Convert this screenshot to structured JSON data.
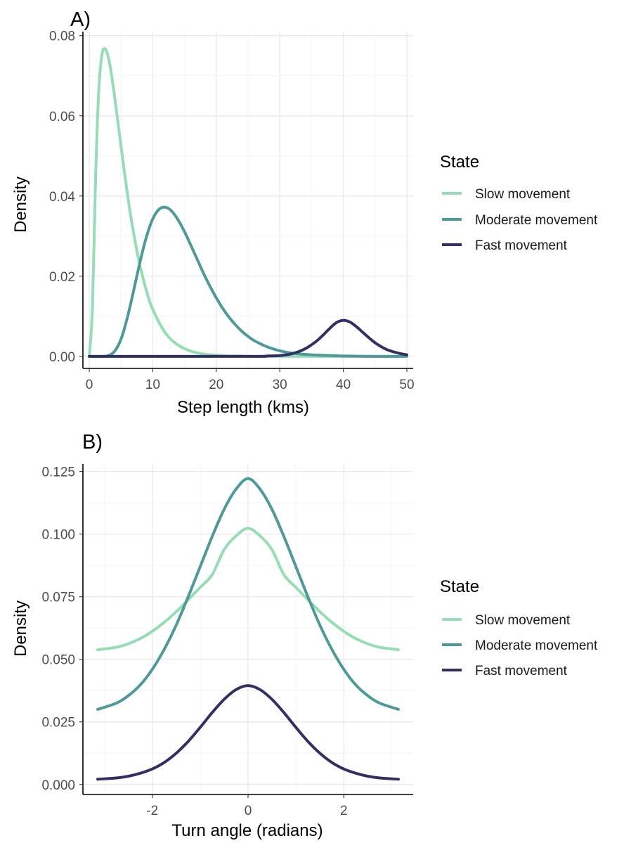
{
  "chart_data": [
    {
      "type": "line",
      "panel_tag": "A)",
      "xlabel": "Step length (kms)",
      "ylabel": "Density",
      "xlim": [
        -1,
        51
      ],
      "ylim": [
        -0.003,
        0.081
      ],
      "xticks": [
        0,
        10,
        20,
        30,
        40,
        50
      ],
      "xtick_labels": [
        "0",
        "10",
        "20",
        "30",
        "40",
        "50"
      ],
      "yticks": [
        0,
        0.02,
        0.04,
        0.06,
        0.08
      ],
      "ytick_labels": [
        "0.00",
        "0.02",
        "0.04",
        "0.06",
        "0.08"
      ],
      "grid": true,
      "legend": {
        "title": "State",
        "placement": "right",
        "entries": [
          "Slow movement",
          "Moderate movement",
          "Fast movement"
        ]
      },
      "series": [
        {
          "name": "Slow movement",
          "color": "#95DEB3",
          "x": [
            0,
            0.5,
            1,
            1.5,
            2,
            2.5,
            3,
            3.5,
            4,
            4.5,
            5,
            6,
            7,
            8,
            9,
            10,
            12,
            14,
            16,
            18,
            20,
            22,
            24,
            26,
            28,
            30,
            35,
            40,
            45,
            50
          ],
          "y": [
            0,
            0.0122,
            0.0448,
            0.0664,
            0.0753,
            0.0767,
            0.0746,
            0.0703,
            0.0647,
            0.0586,
            0.0524,
            0.0406,
            0.0306,
            0.0226,
            0.0164,
            0.0117,
            0.0058,
            0.0028,
            0.0013,
            0.0006,
            0.0003,
            0.0001,
            0.0001,
            0,
            0,
            0,
            0,
            0,
            0,
            0
          ]
        },
        {
          "name": "Moderate movement",
          "color": "#4E9A99",
          "x": [
            0,
            2,
            3,
            4,
            5,
            6,
            7,
            8,
            9,
            10,
            11,
            12,
            13,
            14,
            15,
            16,
            17,
            18,
            19,
            20,
            21,
            22,
            23,
            24,
            25,
            26,
            28,
            30,
            32,
            34,
            36,
            40,
            45,
            50
          ],
          "y": [
            0,
            0,
            0.0002,
            0.0013,
            0.0043,
            0.0097,
            0.0165,
            0.0236,
            0.0298,
            0.0343,
            0.0367,
            0.0372,
            0.0362,
            0.034,
            0.0311,
            0.0277,
            0.0242,
            0.0207,
            0.0175,
            0.0146,
            0.012,
            0.0098,
            0.0079,
            0.0063,
            0.005,
            0.0039,
            0.0024,
            0.0014,
            0.0008,
            0.0005,
            0.0003,
            0.0001,
            0,
            0
          ]
        },
        {
          "name": "Fast movement",
          "color": "#312F63",
          "x": [
            0,
            25,
            28,
            30,
            31,
            32,
            33,
            34,
            35,
            36,
            37,
            38,
            39,
            40,
            41,
            42,
            43,
            44,
            45,
            46,
            47,
            48,
            49,
            50
          ],
          "y": [
            0,
            0,
            0.0001,
            0.0002,
            0.0004,
            0.0007,
            0.0012,
            0.0019,
            0.0029,
            0.0041,
            0.0056,
            0.0072,
            0.0085,
            0.009,
            0.0086,
            0.0075,
            0.0061,
            0.0047,
            0.0034,
            0.0024,
            0.0016,
            0.0011,
            0.0007,
            0.0004
          ]
        }
      ]
    },
    {
      "type": "line",
      "panel_tag": "B)",
      "xlabel": "Turn angle (radians)",
      "ylabel": "Density",
      "xlim": [
        -3.45,
        3.45
      ],
      "ylim": [
        -0.004,
        0.128
      ],
      "xticks": [
        -2,
        0,
        2
      ],
      "xtick_labels": [
        "-2",
        "0",
        "2"
      ],
      "yticks": [
        0,
        0.025,
        0.05,
        0.075,
        0.1,
        0.125
      ],
      "ytick_labels": [
        "0.000",
        "0.025",
        "0.050",
        "0.075",
        "0.100",
        "0.125"
      ],
      "grid": true,
      "legend": {
        "title": "State",
        "placement": "right",
        "entries": [
          "Slow movement",
          "Moderate movement",
          "Fast movement"
        ]
      },
      "series": [
        {
          "name": "Slow movement",
          "color": "#95DEB3",
          "x": [
            -3.1416,
            -2.75,
            -2.5,
            -2.25,
            -2,
            -1.75,
            -1.5,
            -1.25,
            -1,
            -0.75,
            -0.5,
            -0.25,
            0,
            0.25,
            0.5,
            0.75,
            1,
            1.25,
            1.5,
            1.75,
            2,
            2.25,
            2.5,
            2.75,
            3.1416
          ],
          "y": [
            0.0538,
            0.0548,
            0.0562,
            0.0583,
            0.0612,
            0.0648,
            0.069,
            0.0738,
            0.0787,
            0.0838,
            0.0938,
            0.0993,
            0.1023,
            0.0993,
            0.0938,
            0.0838,
            0.0787,
            0.0738,
            0.069,
            0.0648,
            0.0612,
            0.0583,
            0.0562,
            0.0548,
            0.0538
          ]
        },
        {
          "name": "Moderate movement",
          "color": "#4E9A99",
          "x": [
            -3.1416,
            -2.75,
            -2.5,
            -2.25,
            -2,
            -1.75,
            -1.5,
            -1.25,
            -1,
            -0.75,
            -0.5,
            -0.25,
            0,
            0.25,
            0.5,
            0.75,
            1,
            1.25,
            1.5,
            1.75,
            2,
            2.25,
            2.5,
            2.75,
            3.1416
          ],
          "y": [
            0.03,
            0.0325,
            0.0355,
            0.0398,
            0.046,
            0.054,
            0.0637,
            0.075,
            0.087,
            0.099,
            0.1099,
            0.118,
            0.1222,
            0.118,
            0.1099,
            0.099,
            0.087,
            0.075,
            0.0637,
            0.054,
            0.046,
            0.0398,
            0.0355,
            0.0325,
            0.03
          ]
        },
        {
          "name": "Fast movement",
          "color": "#312F63",
          "x": [
            -3.1416,
            -2.75,
            -2.5,
            -2.25,
            -2,
            -1.75,
            -1.5,
            -1.25,
            -1,
            -0.75,
            -0.5,
            -0.25,
            0,
            0.25,
            0.5,
            0.75,
            1,
            1.25,
            1.5,
            1.75,
            2,
            2.25,
            2.5,
            2.75,
            3.1416
          ],
          "y": [
            0.0021,
            0.0026,
            0.0033,
            0.0045,
            0.0062,
            0.0088,
            0.0125,
            0.0172,
            0.0228,
            0.0287,
            0.034,
            0.0379,
            0.0395,
            0.0379,
            0.034,
            0.0287,
            0.0228,
            0.0172,
            0.0125,
            0.0088,
            0.0062,
            0.0045,
            0.0033,
            0.0026,
            0.0021
          ]
        }
      ]
    }
  ]
}
